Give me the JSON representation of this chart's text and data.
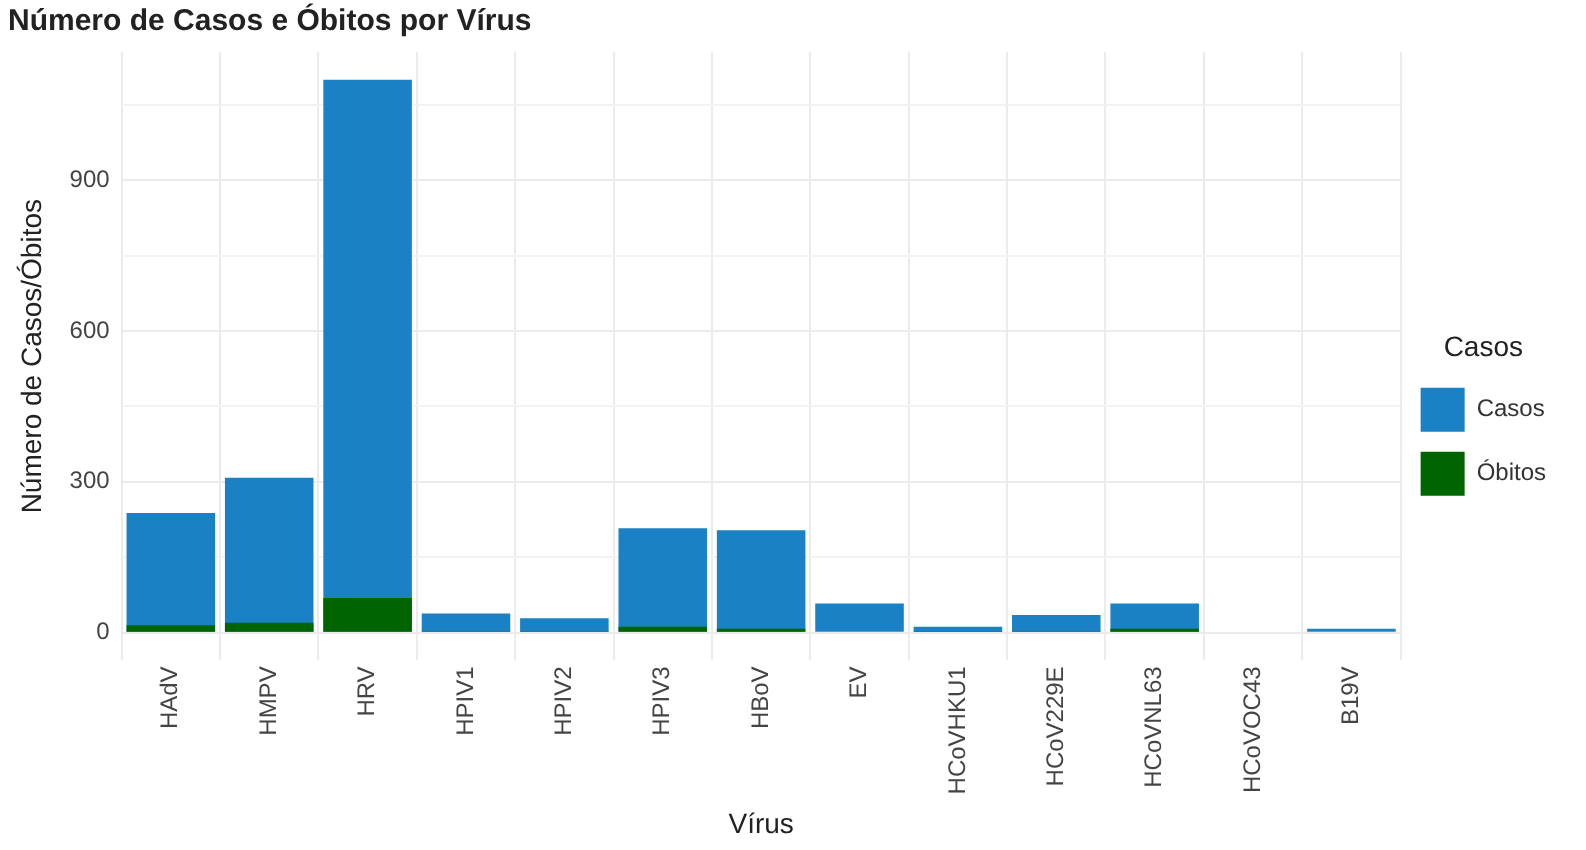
{
  "chart_data": {
    "type": "bar",
    "title": "Número de Casos e Óbitos por Vírus",
    "xlabel": "Vírus",
    "ylabel": "Número de Casos/Óbitos",
    "legend_title": "Casos",
    "categories": [
      "HAdV",
      "HMPV",
      "HRV",
      "HPIV1",
      "HPIV2",
      "HPIV3",
      "HBoV",
      "EV",
      "HCoVHKU1",
      "HCoV229E",
      "HCoVNL63",
      "HCoVOC43",
      "B19V"
    ],
    "series": [
      {
        "name": "Casos",
        "color": "#1a82c4",
        "values": [
          238,
          308,
          1100,
          38,
          29,
          208,
          204,
          58,
          12,
          35,
          58,
          0,
          8
        ]
      },
      {
        "name": "Óbitos",
        "color": "#006400",
        "values": [
          15,
          20,
          69,
          3,
          3,
          12,
          8,
          0,
          3,
          3,
          8,
          0,
          0
        ]
      }
    ],
    "ylim": [
      -55,
      1155
    ],
    "yticks": [
      0,
      {
        "value": 150,
        "label": null
      },
      300,
      {
        "value": 450,
        "label": null
      },
      600,
      {
        "value": 750,
        "label": null
      },
      900,
      {
        "value": 1050,
        "label": null
      }
    ],
    "grid": true,
    "legend": "right"
  }
}
